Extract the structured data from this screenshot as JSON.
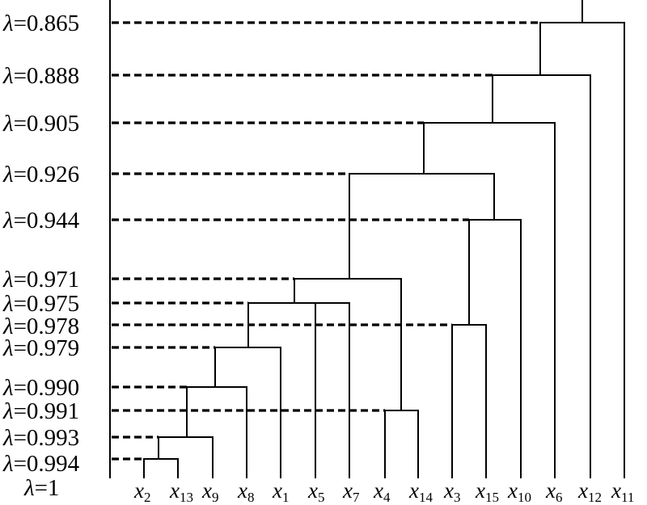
{
  "lambda_symbol": "λ",
  "levels": [
    {
      "label": "λ=0.865",
      "prefix": "=",
      "value": "0.865"
    },
    {
      "label": "λ=0.888",
      "prefix": "=",
      "value": "0.888"
    },
    {
      "label": "λ=0.905",
      "prefix": "=",
      "value": "0.905"
    },
    {
      "label": "λ=0.926",
      "prefix": "=",
      "value": "0.926"
    },
    {
      "label": "λ=0.944",
      "prefix": "=",
      "value": "0.944"
    },
    {
      "label": "λ=0.971",
      "prefix": "=",
      "value": "0.971"
    },
    {
      "label": "λ=0.975",
      "prefix": "=",
      "value": "0.975"
    },
    {
      "label": "λ=0.978",
      "prefix": "=",
      "value": "0.978"
    },
    {
      "label": "λ=0.979",
      "prefix": "=",
      "value": "0.979"
    },
    {
      "label": "λ=0.990",
      "prefix": "=",
      "value": "0.990"
    },
    {
      "label": "λ=0.991",
      "prefix": "=",
      "value": "0.991"
    },
    {
      "label": "λ=0.993",
      "prefix": "=",
      "value": "0.993"
    },
    {
      "label": "λ=0.994",
      "prefix": "=",
      "value": "0.994"
    }
  ],
  "base_level": {
    "label": "λ=1",
    "prefix": "=",
    "value": "1"
  },
  "leaves": [
    {
      "base": "x",
      "sub": "2"
    },
    {
      "base": "x",
      "sub": "13"
    },
    {
      "base": "x",
      "sub": "9"
    },
    {
      "base": "x",
      "sub": "8"
    },
    {
      "base": "x",
      "sub": "1"
    },
    {
      "base": "x",
      "sub": "5"
    },
    {
      "base": "x",
      "sub": "7"
    },
    {
      "base": "x",
      "sub": "4"
    },
    {
      "base": "x",
      "sub": "14"
    },
    {
      "base": "x",
      "sub": "3"
    },
    {
      "base": "x",
      "sub": "15"
    },
    {
      "base": "x",
      "sub": "10"
    },
    {
      "base": "x",
      "sub": "6"
    },
    {
      "base": "x",
      "sub": "12"
    },
    {
      "base": "x",
      "sub": "11"
    }
  ],
  "merges": [
    {
      "left": [
        "x2"
      ],
      "right": [
        "x13"
      ],
      "lambda": "0.994"
    },
    {
      "left": [
        "x2",
        "x13"
      ],
      "right": [
        "x9"
      ],
      "lambda": "0.993"
    },
    {
      "left": [
        "x2",
        "x13",
        "x9"
      ],
      "right": [
        "x8"
      ],
      "lambda": "0.990"
    },
    {
      "left": [
        "x4"
      ],
      "right": [
        "x14"
      ],
      "lambda": "0.991"
    },
    {
      "left": [
        "x2",
        "x13",
        "x9",
        "x8"
      ],
      "right": [
        "x1"
      ],
      "lambda": "0.979"
    },
    {
      "left": [
        "x2",
        "x13",
        "x9",
        "x8",
        "x1"
      ],
      "right": [
        "x5",
        "x7"
      ],
      "lambda": "0.975"
    },
    {
      "left": [
        "x2",
        "x13",
        "x9",
        "x8",
        "x1",
        "x5",
        "x7"
      ],
      "right": [
        "x4",
        "x14"
      ],
      "lambda": "0.971"
    },
    {
      "left": [
        "x3"
      ],
      "right": [
        "x15"
      ],
      "lambda": "0.978"
    },
    {
      "left": [
        "x3",
        "x15"
      ],
      "right": [
        "x10"
      ],
      "lambda": "0.944"
    },
    {
      "left": [
        "cluster A"
      ],
      "right": [
        "x3",
        "x15",
        "x10"
      ],
      "lambda": "0.926"
    },
    {
      "left": [
        "cluster B"
      ],
      "right": [
        "x6"
      ],
      "lambda": "0.905"
    },
    {
      "left": [
        "cluster C"
      ],
      "right": [
        "x12"
      ],
      "lambda": "0.888"
    },
    {
      "left": [
        "cluster D"
      ],
      "right": [
        "x11"
      ],
      "lambda": "0.865"
    }
  ]
}
